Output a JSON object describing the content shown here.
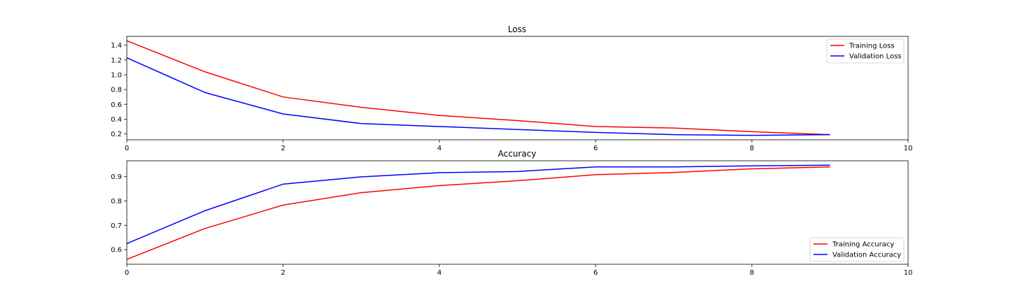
{
  "chart_data": [
    {
      "type": "line",
      "title": "Loss",
      "xlabel": "",
      "ylabel": "",
      "xlim": [
        0,
        10
      ],
      "ylim": [
        0.12,
        1.52
      ],
      "xticks": [
        0,
        2,
        4,
        6,
        8,
        10
      ],
      "xtick_labels": [
        "0",
        "2",
        "4",
        "6",
        "8",
        "10"
      ],
      "yticks": [
        0.2,
        0.4,
        0.6,
        0.8,
        1.0,
        1.2,
        1.4
      ],
      "ytick_labels": [
        "0.2",
        "0.4",
        "0.6",
        "0.8",
        "1.0",
        "1.2",
        "1.4"
      ],
      "grid": false,
      "legend_position": "top-right",
      "x": [
        0,
        1,
        2,
        3,
        4,
        5,
        6,
        7,
        8,
        9
      ],
      "series": [
        {
          "name": "Training Loss",
          "color": "#ff0000",
          "values": [
            1.46,
            1.04,
            0.7,
            0.56,
            0.45,
            0.38,
            0.3,
            0.28,
            0.23,
            0.19
          ]
        },
        {
          "name": "Validation Loss",
          "color": "#0000ff",
          "values": [
            1.23,
            0.76,
            0.47,
            0.34,
            0.3,
            0.26,
            0.22,
            0.19,
            0.18,
            0.19
          ]
        }
      ]
    },
    {
      "type": "line",
      "title": "Accuracy",
      "xlabel": "",
      "ylabel": "",
      "xlim": [
        0,
        10
      ],
      "ylim": [
        0.54,
        0.965
      ],
      "xticks": [
        0,
        2,
        4,
        6,
        8,
        10
      ],
      "xtick_labels": [
        "0",
        "2",
        "4",
        "6",
        "8",
        "10"
      ],
      "yticks": [
        0.6,
        0.7,
        0.8,
        0.9
      ],
      "ytick_labels": [
        "0.6",
        "0.7",
        "0.8",
        "0.9"
      ],
      "grid": false,
      "legend_position": "bottom-right",
      "x": [
        0,
        1,
        2,
        3,
        4,
        5,
        6,
        7,
        8,
        9
      ],
      "series": [
        {
          "name": "Training Accuracy",
          "color": "#ff0000",
          "values": [
            0.56,
            0.687,
            0.783,
            0.834,
            0.863,
            0.883,
            0.908,
            0.917,
            0.932,
            0.94
          ]
        },
        {
          "name": "Validation Accuracy",
          "color": "#0000ff",
          "values": [
            0.625,
            0.76,
            0.869,
            0.899,
            0.916,
            0.921,
            0.94,
            0.94,
            0.944,
            0.947
          ]
        }
      ]
    }
  ]
}
